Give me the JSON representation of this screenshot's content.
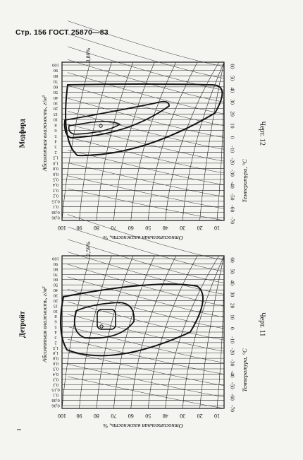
{
  "header": {
    "page_label": "Стр. 156 ГОСТ 25870—83"
  },
  "tick_labels": {
    "abs_humidity": [
      "100",
      "90",
      "80",
      "70",
      "60",
      "50",
      "40",
      "30",
      "20",
      "15",
      "10",
      "8",
      "6",
      "5",
      "4",
      "3",
      "2",
      "1,5",
      "1,0",
      "0,8",
      "0,6",
      "0,5",
      "0,4",
      "0,3",
      "0,2",
      "0,15",
      "0,1",
      "0,08",
      "0,06"
    ],
    "rel_humidity": [
      "100",
      "90",
      "80",
      "70",
      "60",
      "50",
      "40",
      "30",
      "20",
      "10"
    ],
    "temperature": [
      "-70",
      "-60",
      "-50",
      "-40",
      "-30",
      "-20",
      "-10",
      "0",
      "10",
      "20",
      "30",
      "40",
      "50",
      "60"
    ]
  },
  "charts": [
    {
      "id": "chart-12",
      "city": "Медфорд",
      "chart_label": "Черт. 12",
      "value_note": "3,89%",
      "abs_axis_label": "Абсолютная влажность, г/м³",
      "rel_axis_label": "Относительная влажность, %",
      "temp_axis_label": "Температура, °С"
    },
    {
      "id": "chart-11",
      "city": "Детройт",
      "chart_label": "Черт. 11",
      "value_note": "2,59%",
      "abs_axis_label": "Абсолютная влажность, г/м³",
      "rel_axis_label": "Относительная влажность, %",
      "temp_axis_label": "Температура, °С"
    }
  ]
}
